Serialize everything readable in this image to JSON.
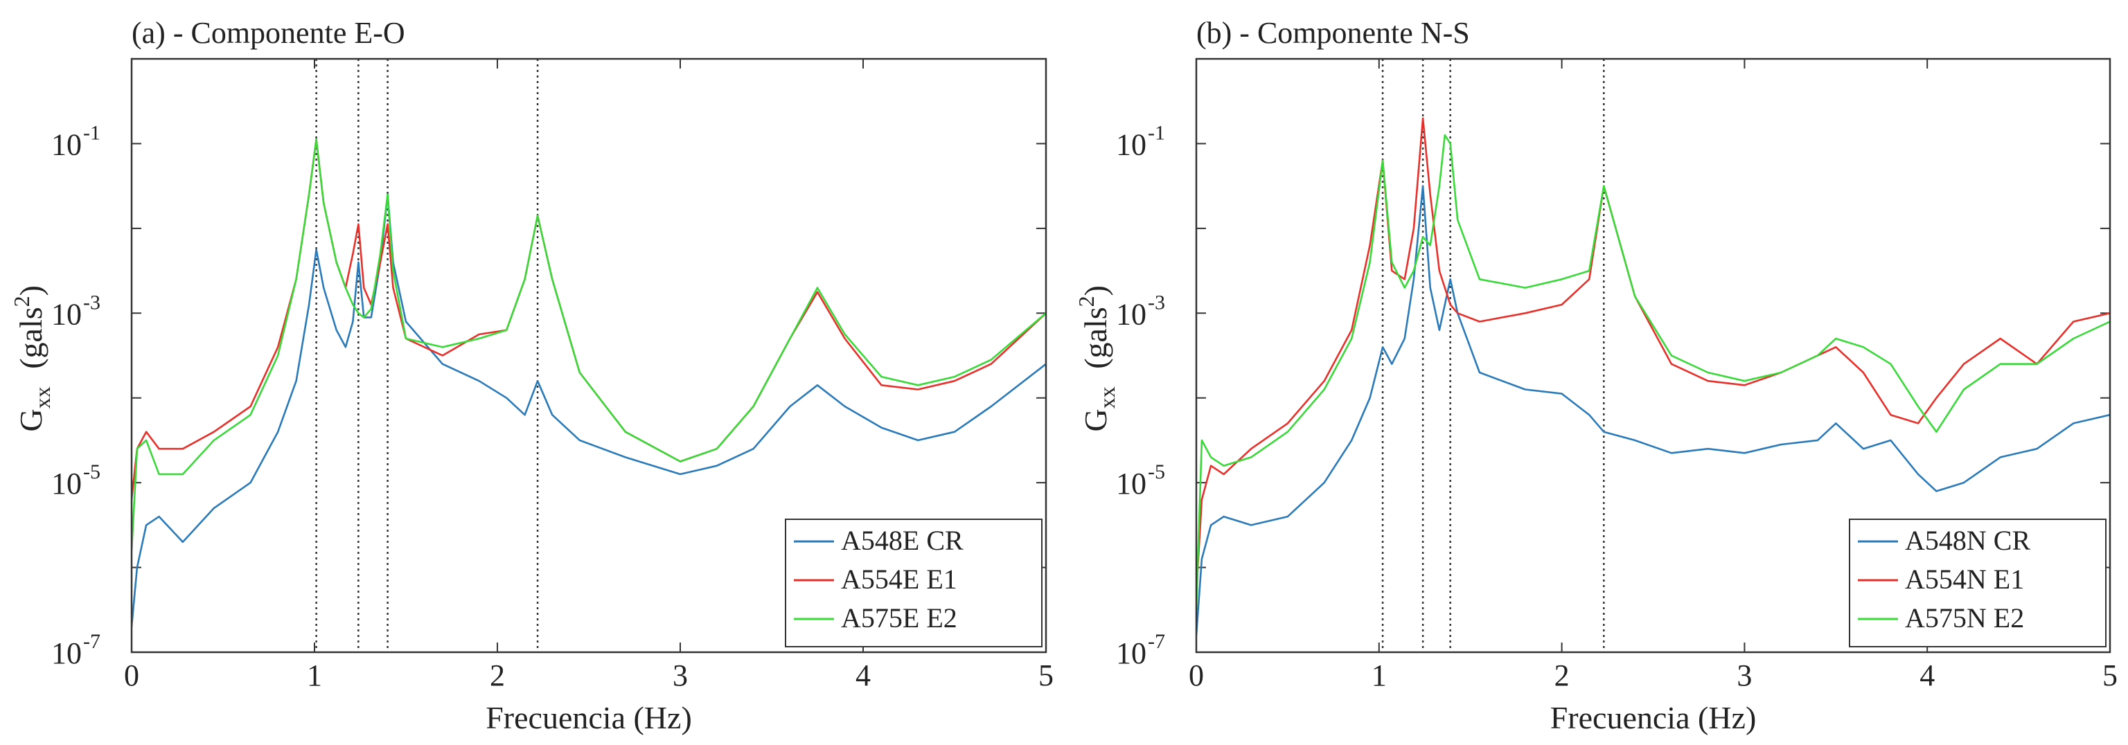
{
  "chart_data": [
    {
      "type": "line",
      "title": "(a) - Componente E-O",
      "xlabel": "Frecuencia (Hz)",
      "ylabel": {
        "base": "G",
        "subscript": "xx",
        "unit_open": "(gals",
        "unit_exp": "2",
        "unit_close": ")"
      },
      "xlim": [
        0,
        5
      ],
      "ylim_log10": [
        -7,
        0
      ],
      "y_scale": "log",
      "x_ticks": [
        0,
        1,
        2,
        3,
        4,
        5
      ],
      "x_tick_labels": [
        "0",
        "1",
        "2",
        "3",
        "4",
        "5"
      ],
      "y_ticks_log10": [
        -7,
        -5,
        -3,
        -1
      ],
      "y_tick_labels": [
        {
          "base": "10",
          "exp": "-7"
        },
        {
          "base": "10",
          "exp": "-5"
        },
        {
          "base": "10",
          "exp": "-3"
        },
        {
          "base": "10",
          "exp": "-1"
        }
      ],
      "vertical_markers_hz": [
        1.01,
        1.24,
        1.4,
        2.22
      ],
      "legend_position": "bottom-right",
      "series": [
        {
          "name": "A548E CR",
          "color": "#2a7ab9",
          "x": [
            0,
            0.03,
            0.08,
            0.15,
            0.28,
            0.45,
            0.65,
            0.8,
            0.9,
            0.97,
            1.01,
            1.05,
            1.12,
            1.17,
            1.21,
            1.24,
            1.27,
            1.31,
            1.36,
            1.4,
            1.43,
            1.5,
            1.7,
            1.9,
            2.05,
            2.15,
            2.22,
            2.3,
            2.45,
            2.7,
            3.0,
            3.2,
            3.4,
            3.6,
            3.75,
            3.9,
            4.1,
            4.3,
            4.5,
            4.7,
            5.0
          ],
          "log10y": [
            -6.7,
            -6.0,
            -5.5,
            -5.4,
            -5.7,
            -5.3,
            -5.0,
            -4.4,
            -3.8,
            -2.9,
            -2.25,
            -2.7,
            -3.2,
            -3.4,
            -3.1,
            -2.4,
            -3.05,
            -3.05,
            -2.4,
            -1.6,
            -2.4,
            -3.1,
            -3.6,
            -3.8,
            -4.0,
            -4.2,
            -3.8,
            -4.2,
            -4.5,
            -4.7,
            -4.9,
            -4.8,
            -4.6,
            -4.1,
            -3.85,
            -4.1,
            -4.35,
            -4.5,
            -4.4,
            -4.1,
            -3.6
          ]
        },
        {
          "name": "A554E E1",
          "color": "#e8302a",
          "x": [
            0,
            0.03,
            0.08,
            0.15,
            0.28,
            0.45,
            0.65,
            0.8,
            0.9,
            0.97,
            1.01,
            1.05,
            1.12,
            1.17,
            1.21,
            1.24,
            1.27,
            1.31,
            1.36,
            1.4,
            1.43,
            1.5,
            1.7,
            1.9,
            2.05,
            2.15,
            2.22,
            2.3,
            2.45,
            2.7,
            3.0,
            3.2,
            3.4,
            3.6,
            3.75,
            3.9,
            4.1,
            4.3,
            4.5,
            4.7,
            5.0
          ],
          "log10y": [
            -5.2,
            -4.6,
            -4.4,
            -4.6,
            -4.6,
            -4.4,
            -4.1,
            -3.4,
            -2.6,
            -1.6,
            -0.95,
            -1.7,
            -2.4,
            -2.7,
            -2.3,
            -1.95,
            -2.7,
            -2.9,
            -2.4,
            -1.95,
            -2.7,
            -3.3,
            -3.5,
            -3.25,
            -3.2,
            -2.6,
            -1.85,
            -2.6,
            -3.7,
            -4.4,
            -4.75,
            -4.6,
            -4.1,
            -3.3,
            -2.75,
            -3.3,
            -3.85,
            -3.9,
            -3.8,
            -3.6,
            -3.0
          ]
        },
        {
          "name": "A575E E2",
          "color": "#3ad93a",
          "x": [
            0,
            0.03,
            0.08,
            0.15,
            0.28,
            0.45,
            0.65,
            0.8,
            0.9,
            0.97,
            1.01,
            1.05,
            1.12,
            1.17,
            1.21,
            1.24,
            1.27,
            1.31,
            1.36,
            1.4,
            1.43,
            1.5,
            1.7,
            1.9,
            2.05,
            2.15,
            2.22,
            2.3,
            2.45,
            2.7,
            3.0,
            3.2,
            3.4,
            3.6,
            3.75,
            3.9,
            4.1,
            4.3,
            4.5,
            4.7,
            5.0
          ],
          "log10y": [
            -5.8,
            -4.6,
            -4.5,
            -4.9,
            -4.9,
            -4.5,
            -4.2,
            -3.5,
            -2.6,
            -1.6,
            -0.95,
            -1.7,
            -2.4,
            -2.7,
            -2.9,
            -3.0,
            -3.05,
            -2.95,
            -2.3,
            -1.6,
            -2.5,
            -3.3,
            -3.4,
            -3.3,
            -3.2,
            -2.6,
            -1.85,
            -2.6,
            -3.7,
            -4.4,
            -4.75,
            -4.6,
            -4.1,
            -3.3,
            -2.7,
            -3.25,
            -3.75,
            -3.85,
            -3.75,
            -3.55,
            -3.0
          ]
        }
      ]
    },
    {
      "type": "line",
      "title": "(b) - Componente N-S",
      "xlabel": "Frecuencia (Hz)",
      "ylabel": {
        "base": "G",
        "subscript": "xx",
        "unit_open": "(gals",
        "unit_exp": "2",
        "unit_close": ")"
      },
      "xlim": [
        0,
        5
      ],
      "ylim_log10": [
        -7,
        0
      ],
      "y_scale": "log",
      "x_ticks": [
        0,
        1,
        2,
        3,
        4,
        5
      ],
      "x_tick_labels": [
        "0",
        "1",
        "2",
        "3",
        "4",
        "5"
      ],
      "y_ticks_log10": [
        -7,
        -5,
        -3,
        -1
      ],
      "y_tick_labels": [
        {
          "base": "10",
          "exp": "-7"
        },
        {
          "base": "10",
          "exp": "-5"
        },
        {
          "base": "10",
          "exp": "-3"
        },
        {
          "base": "10",
          "exp": "-1"
        }
      ],
      "vertical_markers_hz": [
        1.02,
        1.24,
        1.39,
        2.23
      ],
      "legend_position": "bottom-right",
      "series": [
        {
          "name": "A548N CR",
          "color": "#2a7ab9",
          "x": [
            0,
            0.03,
            0.08,
            0.15,
            0.3,
            0.5,
            0.7,
            0.85,
            0.95,
            1.02,
            1.07,
            1.14,
            1.19,
            1.24,
            1.28,
            1.33,
            1.36,
            1.39,
            1.43,
            1.55,
            1.8,
            2.0,
            2.15,
            2.23,
            2.4,
            2.6,
            2.8,
            3.0,
            3.2,
            3.4,
            3.5,
            3.65,
            3.8,
            3.95,
            4.05,
            4.2,
            4.4,
            4.6,
            4.8,
            5.0
          ],
          "log10y": [
            -6.8,
            -5.9,
            -5.5,
            -5.4,
            -5.5,
            -5.4,
            -5.0,
            -4.5,
            -4.0,
            -3.4,
            -3.6,
            -3.3,
            -2.6,
            -1.5,
            -2.7,
            -3.2,
            -2.9,
            -2.6,
            -3.0,
            -3.7,
            -3.9,
            -3.95,
            -4.2,
            -4.4,
            -4.5,
            -4.65,
            -4.6,
            -4.65,
            -4.55,
            -4.5,
            -4.3,
            -4.6,
            -4.5,
            -4.9,
            -5.1,
            -5.0,
            -4.7,
            -4.6,
            -4.3,
            -4.2
          ]
        },
        {
          "name": "A554N E1",
          "color": "#e8302a",
          "x": [
            0,
            0.03,
            0.08,
            0.15,
            0.3,
            0.5,
            0.7,
            0.85,
            0.95,
            1.02,
            1.07,
            1.14,
            1.19,
            1.24,
            1.28,
            1.33,
            1.36,
            1.39,
            1.43,
            1.55,
            1.8,
            2.0,
            2.15,
            2.23,
            2.4,
            2.6,
            2.8,
            3.0,
            3.2,
            3.4,
            3.5,
            3.65,
            3.8,
            3.95,
            4.05,
            4.2,
            4.4,
            4.6,
            4.8,
            5.0
          ],
          "log10y": [
            -6.3,
            -5.2,
            -4.8,
            -4.9,
            -4.6,
            -4.3,
            -3.8,
            -3.2,
            -2.2,
            -1.2,
            -2.5,
            -2.6,
            -2.0,
            -0.7,
            -1.6,
            -2.5,
            -2.7,
            -2.9,
            -3.0,
            -3.1,
            -3.0,
            -2.9,
            -2.6,
            -1.5,
            -2.8,
            -3.6,
            -3.8,
            -3.85,
            -3.7,
            -3.5,
            -3.4,
            -3.7,
            -4.2,
            -4.3,
            -4.0,
            -3.6,
            -3.3,
            -3.6,
            -3.1,
            -3.0
          ]
        },
        {
          "name": "A575N E2",
          "color": "#3ad93a",
          "x": [
            0,
            0.03,
            0.08,
            0.15,
            0.3,
            0.5,
            0.7,
            0.85,
            0.95,
            1.02,
            1.07,
            1.14,
            1.19,
            1.24,
            1.28,
            1.33,
            1.36,
            1.39,
            1.43,
            1.55,
            1.8,
            2.0,
            2.15,
            2.23,
            2.4,
            2.6,
            2.8,
            3.0,
            3.2,
            3.4,
            3.5,
            3.65,
            3.8,
            3.95,
            4.05,
            4.2,
            4.4,
            4.6,
            4.8,
            5.0
          ],
          "log10y": [
            -6.5,
            -4.5,
            -4.7,
            -4.8,
            -4.7,
            -4.4,
            -3.9,
            -3.3,
            -2.4,
            -1.2,
            -2.4,
            -2.7,
            -2.5,
            -2.1,
            -2.2,
            -1.5,
            -0.9,
            -1.0,
            -1.9,
            -2.6,
            -2.7,
            -2.6,
            -2.5,
            -1.5,
            -2.8,
            -3.5,
            -3.7,
            -3.8,
            -3.7,
            -3.5,
            -3.3,
            -3.4,
            -3.6,
            -4.1,
            -4.4,
            -3.9,
            -3.6,
            -3.6,
            -3.3,
            -3.1
          ]
        }
      ]
    }
  ]
}
